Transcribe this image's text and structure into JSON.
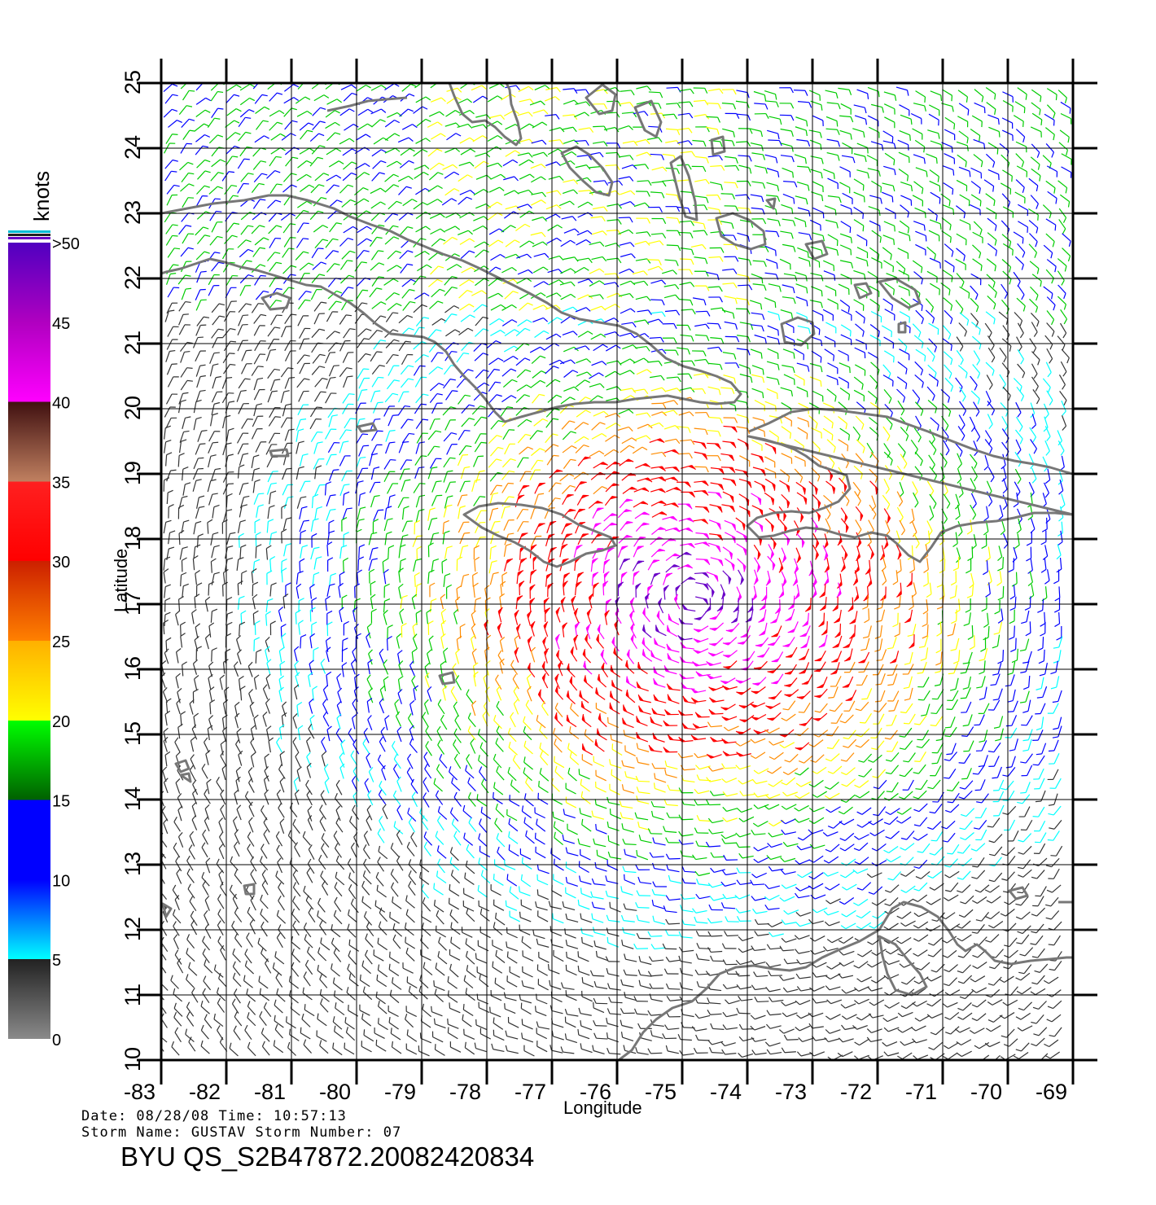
{
  "map": {
    "lon_ticks": [
      "-83",
      "-82",
      "-81",
      "-80",
      "-79",
      "-78",
      "-77",
      "-76",
      "-75",
      "-74",
      "-73",
      "-72",
      "-71",
      "-70",
      "-69"
    ],
    "lat_ticks": [
      "10",
      "11",
      "12",
      "13",
      "14",
      "15",
      "16",
      "17",
      "18",
      "19",
      "20",
      "21",
      "22",
      "23",
      "24",
      "25"
    ],
    "xlabel": "Longitude",
    "ylabel": "Latitude",
    "lon_range": [
      -83,
      -69
    ],
    "lat_range": [
      10,
      25
    ],
    "grid": true
  },
  "colorbar": {
    "title": "knots",
    "labels": [
      "0",
      "5",
      "10",
      "15",
      "20",
      "25",
      "30",
      "35",
      "40",
      "45",
      ">50"
    ],
    "colors": {
      "gray": "#6f6f6f",
      "cyan": "#00ffff",
      "blue": "#0000ff",
      "green": "#00cc00",
      "yellow": "#ffff00",
      "orange": "#ff8c00",
      "red": "#ff0000",
      "brown": "#8b4513",
      "magenta": "#ff00ff",
      "purple": "#6a00c8"
    }
  },
  "info": {
    "line1": "Date: 08/28/08   Time: 10:57:13",
    "line2": "Storm  Name: GUSTAV   Storm  Number: 07",
    "product": "BYU  QS_S2B47872.20082420834"
  },
  "colors": {
    "coast": "#777777",
    "grid": "#000000"
  }
}
